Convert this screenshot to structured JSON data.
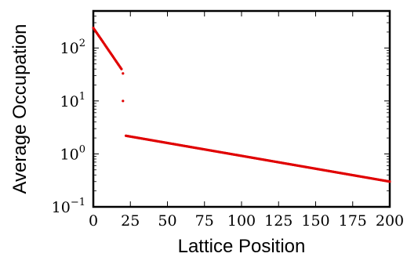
{
  "chart_data": {
    "type": "scatter",
    "title": "",
    "xlabel": "Lattice Position",
    "ylabel": "Average Occupation",
    "xlim": [
      0,
      200
    ],
    "ylim": [
      0.1,
      500
    ],
    "y_scale": "log",
    "grid": false,
    "legend": "none",
    "x_ticks": [
      0,
      25,
      50,
      75,
      100,
      125,
      150,
      175,
      200
    ],
    "x_tick_labels": [
      "0",
      "25",
      "50",
      "75",
      "100",
      "125",
      "150",
      "175",
      "200"
    ],
    "y_ticks": [
      0.1,
      1,
      10,
      100
    ],
    "y_tick_labels": [
      {
        "base": "10",
        "exp": "−1"
      },
      {
        "base": "10",
        "exp": "0"
      },
      {
        "base": "10",
        "exp": "1"
      },
      {
        "base": "10",
        "exp": "2"
      }
    ],
    "marker_color": "#e00000",
    "series": [
      {
        "segments": [
          {
            "x_start": 0,
            "x_end": 19,
            "y_start": 240,
            "y_end": 40
          },
          {
            "x": [
              20,
              20
            ],
            "y": [
              33,
              10
            ]
          },
          {
            "x_start": 22,
            "x_end": 200,
            "y_start": 2.2,
            "y_end": 0.3
          }
        ]
      }
    ]
  }
}
